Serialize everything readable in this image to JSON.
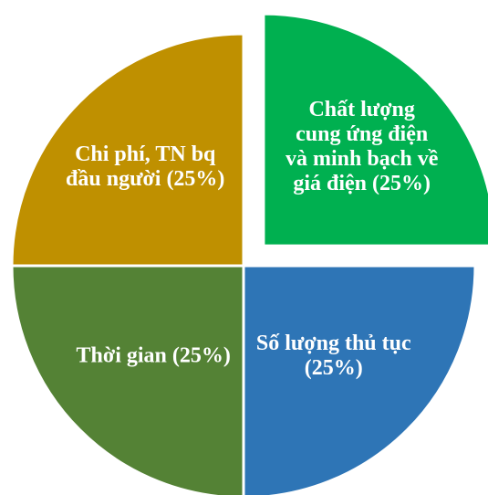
{
  "chart_data": {
    "type": "pie",
    "categories": [
      "Chất lượng cung ứng điện và minh bạch về giá điện",
      "Số lượng thủ tục",
      "Thời gian",
      "Chi phí, TN bq đầu người"
    ],
    "values": [
      25,
      25,
      25,
      25
    ],
    "value_labels": [
      "(25%)",
      "(25%)",
      "(25%)",
      "(25%)"
    ],
    "colors": [
      "#00b050",
      "#2e75b6",
      "#548235",
      "#bf9000"
    ],
    "explode": [
      true,
      false,
      false,
      false
    ]
  }
}
